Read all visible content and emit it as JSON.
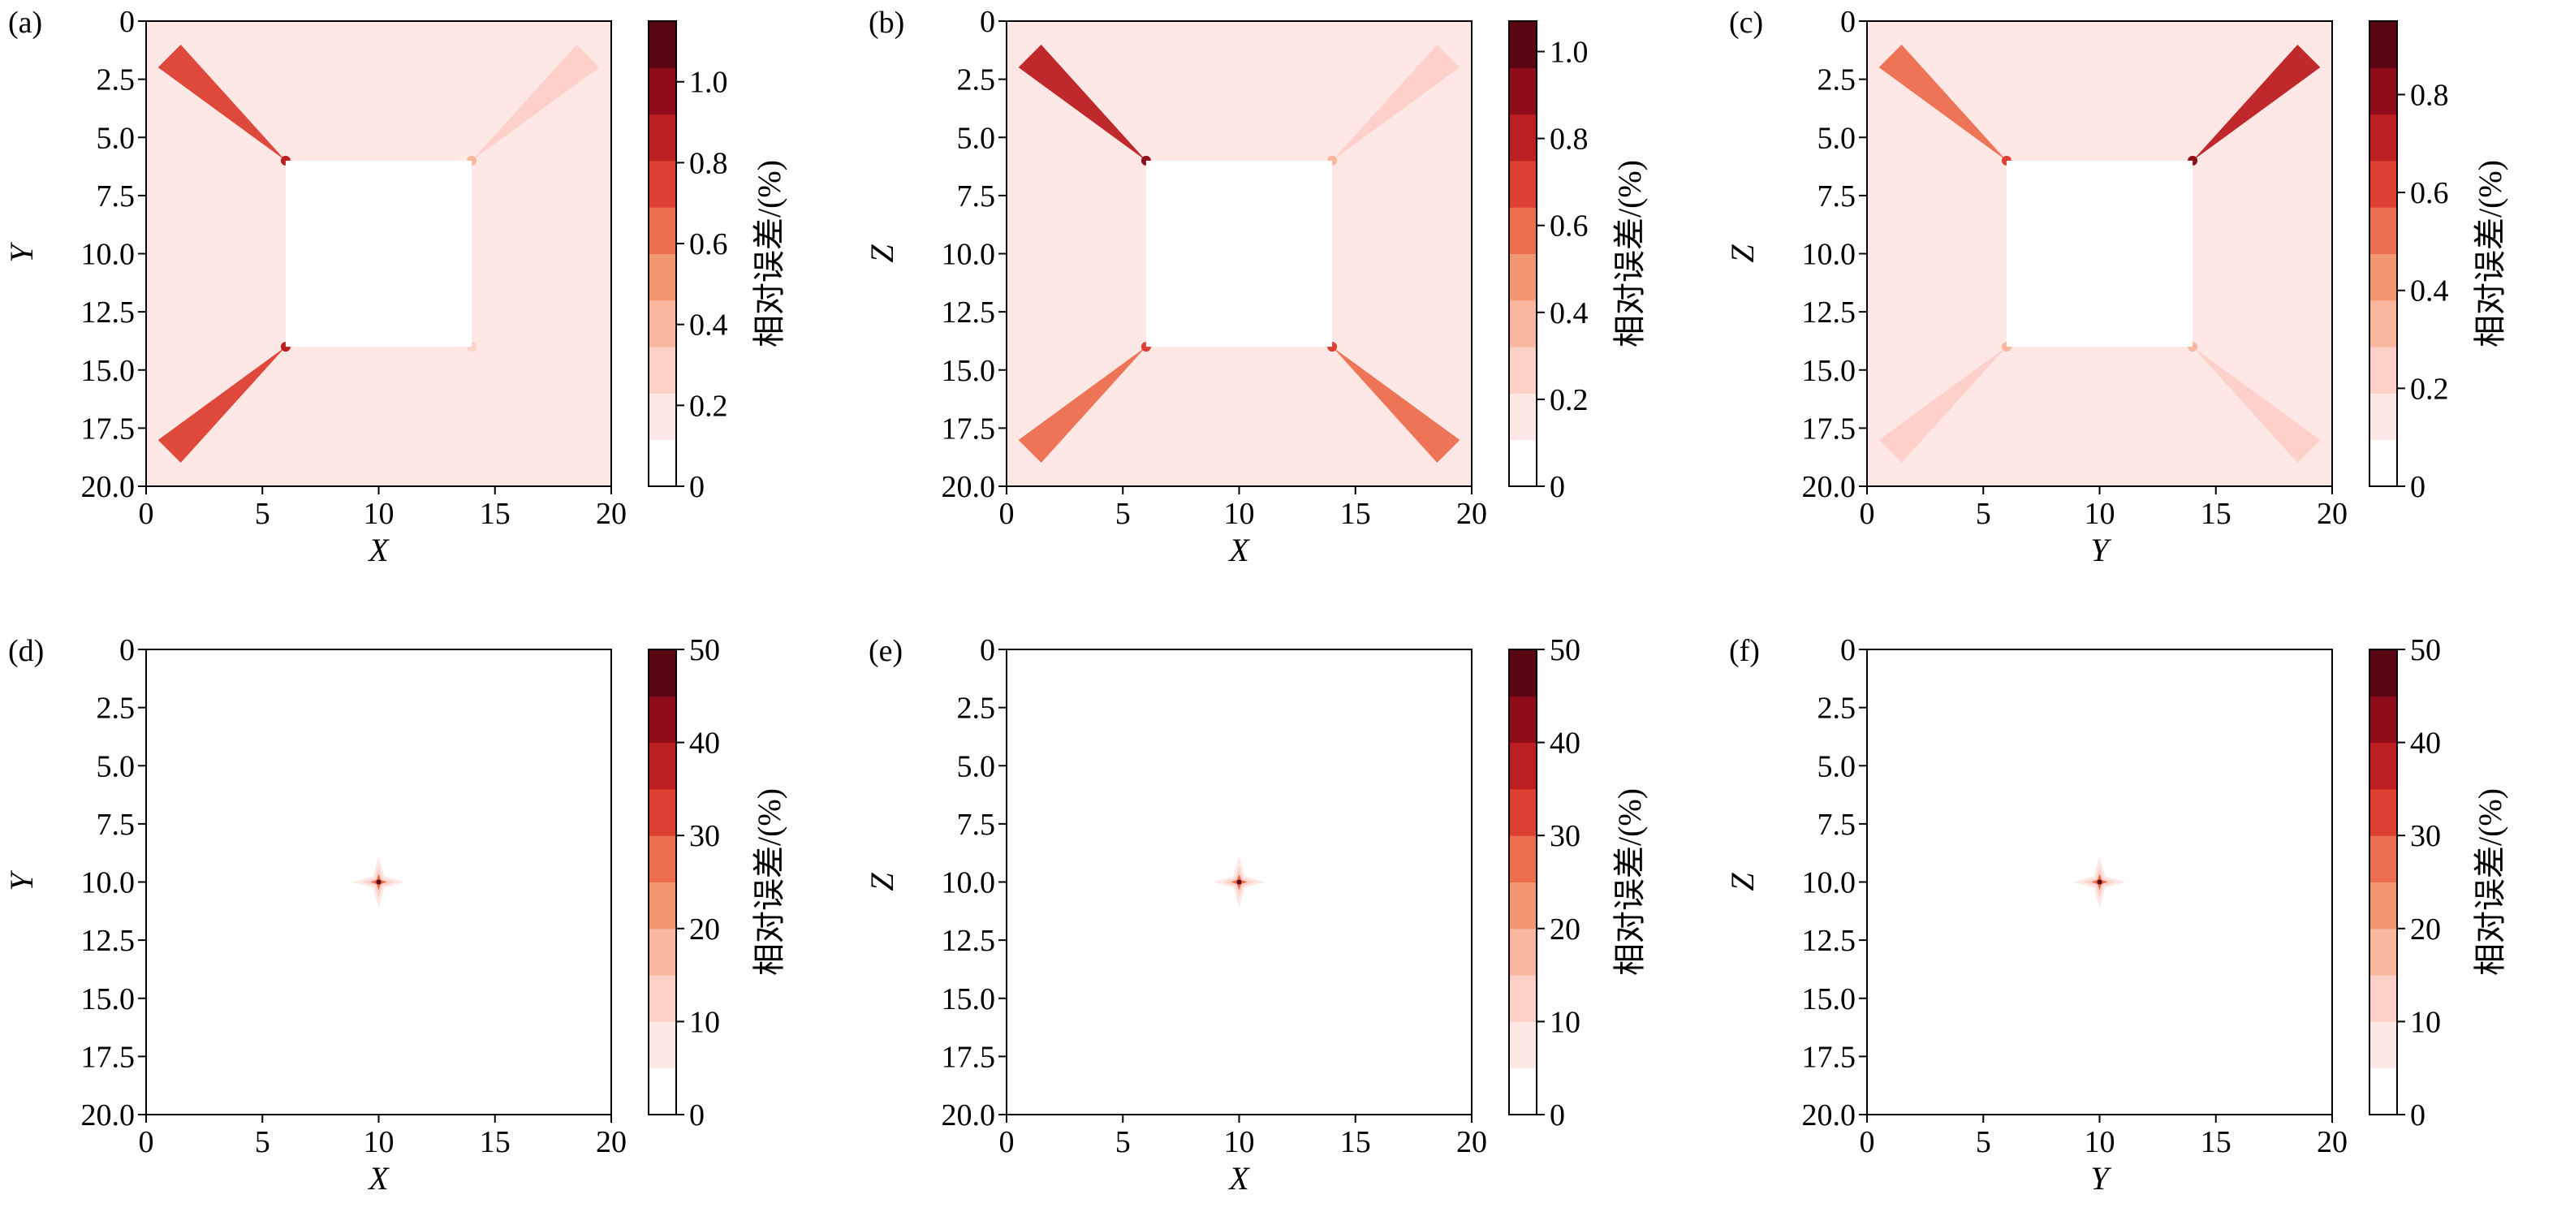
{
  "figure": {
    "colorbar_stops": [
      "#ffffff",
      "#fee8e6",
      "#fdd0c8",
      "#f8b79e",
      "#f39672",
      "#ec6e4e",
      "#dc4032",
      "#bc1f22",
      "#8f0d1b",
      "#5a0612"
    ]
  },
  "chart_data": [
    {
      "type": "heatmap",
      "panel_label": "(a)",
      "xlabel": "X",
      "ylabel": "Y",
      "colorbar_label": "相对误差/(%)",
      "x_ticks": [
        "0",
        "5",
        "10",
        "15",
        "20"
      ],
      "y_ticks": [
        "0",
        "2.5",
        "5.0",
        "7.5",
        "10.0",
        "12.5",
        "15.0",
        "17.5",
        "20.0"
      ],
      "cbar_ticks": [
        "0",
        "0.2",
        "0.4",
        "0.6",
        "0.8",
        "1.0"
      ],
      "xlim": [
        0,
        20
      ],
      "ylim": [
        0,
        20
      ],
      "y_inverted": true,
      "cbar_range": [
        0,
        1.15
      ],
      "peak_error_locations": [
        [
          6,
          6
        ],
        [
          14,
          6
        ],
        [
          6,
          14
        ],
        [
          14,
          14
        ]
      ],
      "low_error_region": [
        [
          6,
          6
        ],
        [
          14,
          14
        ]
      ],
      "background_value": 0.15,
      "streak_values": [
        0.7,
        0.3,
        0.8,
        0.15
      ]
    },
    {
      "type": "heatmap",
      "panel_label": "(b)",
      "xlabel": "X",
      "ylabel": "Z",
      "colorbar_label": "相对误差/(%)",
      "x_ticks": [
        "0",
        "5",
        "10",
        "15",
        "20"
      ],
      "y_ticks": [
        "0",
        "2.5",
        "5.0",
        "7.5",
        "10.0",
        "12.5",
        "15.0",
        "17.5",
        "20.0"
      ],
      "cbar_ticks": [
        "0",
        "0.2",
        "0.4",
        "0.6",
        "0.8",
        "1.0"
      ],
      "xlim": [
        0,
        20
      ],
      "ylim": [
        0,
        20
      ],
      "y_inverted": true,
      "cbar_range": [
        0,
        1.07
      ],
      "peak_error_locations": [
        [
          6,
          6
        ],
        [
          14,
          6
        ],
        [
          6,
          14
        ],
        [
          14,
          14
        ]
      ],
      "low_error_region": [
        [
          6,
          6
        ],
        [
          14,
          14
        ]
      ],
      "background_value": 0.15,
      "streak_values": [
        0.75,
        0.3,
        0.55,
        0.55
      ]
    },
    {
      "type": "heatmap",
      "panel_label": "(c)",
      "xlabel": "Y",
      "ylabel": "Z",
      "colorbar_label": "相对误差/(%)",
      "x_ticks": [
        "0",
        "5",
        "10",
        "15",
        "20"
      ],
      "y_ticks": [
        "0",
        "2.5",
        "5.0",
        "7.5",
        "10.0",
        "12.5",
        "15.0",
        "17.5",
        "20.0"
      ],
      "cbar_ticks": [
        "0",
        "0.2",
        "0.4",
        "0.6",
        "0.8"
      ],
      "xlim": [
        0,
        20
      ],
      "ylim": [
        0,
        20
      ],
      "y_inverted": true,
      "cbar_range": [
        0,
        0.95
      ],
      "peak_error_locations": [
        [
          6,
          6
        ],
        [
          14,
          6
        ],
        [
          6,
          14
        ],
        [
          14,
          14
        ]
      ],
      "low_error_region": [
        [
          6,
          6
        ],
        [
          14,
          14
        ]
      ],
      "background_value": 0.15,
      "streak_values": [
        0.55,
        0.7,
        0.2,
        0.25
      ]
    },
    {
      "type": "heatmap",
      "panel_label": "(d)",
      "xlabel": "X",
      "ylabel": "Y",
      "colorbar_label": "相对误差/(%)",
      "x_ticks": [
        "0",
        "5",
        "10",
        "15",
        "20"
      ],
      "y_ticks": [
        "0",
        "2.5",
        "5.0",
        "7.5",
        "10.0",
        "12.5",
        "15.0",
        "17.5",
        "20.0"
      ],
      "cbar_ticks": [
        "0",
        "10",
        "20",
        "30",
        "40",
        "50"
      ],
      "xlim": [
        0,
        20
      ],
      "ylim": [
        0,
        20
      ],
      "y_inverted": true,
      "cbar_range": [
        0,
        50
      ],
      "peak_location": [
        10,
        10
      ],
      "peak_value": 50
    },
    {
      "type": "heatmap",
      "panel_label": "(e)",
      "xlabel": "X",
      "ylabel": "Z",
      "colorbar_label": "相对误差/(%)",
      "x_ticks": [
        "0",
        "5",
        "10",
        "15",
        "20"
      ],
      "y_ticks": [
        "0",
        "2.5",
        "5.0",
        "7.5",
        "10.0",
        "12.5",
        "15.0",
        "17.5",
        "20.0"
      ],
      "cbar_ticks": [
        "0",
        "10",
        "20",
        "30",
        "40",
        "50"
      ],
      "xlim": [
        0,
        20
      ],
      "ylim": [
        0,
        20
      ],
      "y_inverted": true,
      "cbar_range": [
        0,
        50
      ],
      "peak_location": [
        10,
        10
      ],
      "peak_value": 50
    },
    {
      "type": "heatmap",
      "panel_label": "(f)",
      "xlabel": "Y",
      "ylabel": "Z",
      "colorbar_label": "相对误差/(%)",
      "x_ticks": [
        "0",
        "5",
        "10",
        "15",
        "20"
      ],
      "y_ticks": [
        "0",
        "2.5",
        "5.0",
        "7.5",
        "10.0",
        "12.5",
        "15.0",
        "17.5",
        "20.0"
      ],
      "cbar_ticks": [
        "0",
        "10",
        "20",
        "30",
        "40",
        "50"
      ],
      "xlim": [
        0,
        20
      ],
      "ylim": [
        0,
        20
      ],
      "y_inverted": true,
      "cbar_range": [
        0,
        50
      ],
      "peak_location": [
        10,
        10
      ],
      "peak_value": 50
    }
  ]
}
